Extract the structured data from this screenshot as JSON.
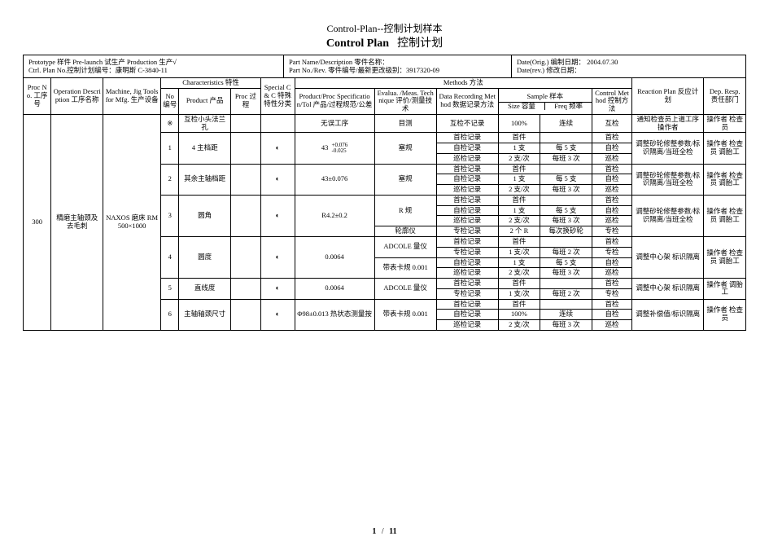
{
  "doc_title": "Control-Plan--控制计划样本",
  "doc_subtitle_bold": "Control  Plan",
  "doc_subtitle_cn": "控制计划",
  "header_box": {
    "c1_line1": "Prototype 样件          Pre-launch 试生产              Production 生产√",
    "c1_line2": "Ctrl. Plan No.控制计划编号：康明斯 C-3840-11",
    "c2_line1": "Part Name/Description 零件名称：",
    "c2_line2": "Part No./Rev. 零件编号/最新更改级别：3917320-09",
    "c3_line1": "Date(Orig.) 编制日期：  2004.07.30",
    "c3_line2": "Date(rev.)  修改日期："
  },
  "columns": {
    "proc_no": "Proc No. 工序号",
    "op_desc": "Operation Description 工序名称",
    "machine": "Machine, Jig Tools for Mfg. 生产设备",
    "characteristics": "Characteristics 特性",
    "no": "No 编号",
    "product": "Product 产品",
    "proc": "Proc 过程",
    "special": "Special C & C 特殊特性分类",
    "methods": "Methods 方法",
    "spec": "Product/Proc Specification/Tol 产品/过程规范/公差",
    "evalua": "Evalua. /Meas. Technique 评价/测量技术",
    "data_record": "Data Recording Method 数据记录方法",
    "sample": "Sample 样本",
    "size": "Size 容量",
    "freq": "Freq 频率",
    "control": "Control Method 控制方法",
    "reaction": "Reaction Plan 反应计划",
    "dep": "Dep. Resp. 责任部门"
  },
  "proc_no": "300",
  "op_desc": "精磨主轴颈及去毛刺",
  "machine": "NAXOS 磨床 RM500×1000",
  "rows": [
    {
      "no": "※",
      "product": "互检小头法兰孔",
      "proc": "",
      "special": "",
      "spec": "无误工序",
      "evalua": "目测",
      "data_record": "互检不记录",
      "size": "100%",
      "freq": "连续",
      "control": "互检",
      "reaction": "通知检查员上道工序操作者",
      "dep": "操作者 检查员"
    },
    {
      "no": "1",
      "product": "4 主档距",
      "proc": "",
      "special": "◐",
      "spec": "43",
      "spec_tol_top": "+0.076",
      "spec_tol_bot": "-0.025",
      "evalua": "塞规",
      "data_record": "首检记录",
      "size": "首件",
      "freq": "",
      "control": "首检",
      "reaction": "调整砂轮修整参数/标识隔离/当班全检",
      "dep": "操作者 检查员 调胎工",
      "span": 3
    },
    {
      "data_record": "自检记录",
      "size": "1 支",
      "freq": "每 5 支",
      "control": "自检"
    },
    {
      "data_record": "巡检记录",
      "size": "2 支/次",
      "freq": "每班 3 次",
      "control": "巡检"
    },
    {
      "no": "2",
      "product": "其余主轴档距",
      "proc": "",
      "special": "◐",
      "spec": "43±0.076",
      "evalua": "塞规",
      "data_record": "首检记录",
      "size": "首件",
      "freq": "",
      "control": "首检",
      "reaction": "调整砂轮修整参数/标识隔离/当班全检",
      "dep": "操作者 检查员 调胎工",
      "span": 3
    },
    {
      "data_record": "自检记录",
      "size": "1 支",
      "freq": "每 5 支",
      "control": "自检"
    },
    {
      "data_record": "巡检记录",
      "size": "2 支/次",
      "freq": "每班 3 次",
      "control": "巡检"
    },
    {
      "no": "3",
      "product": "圆角",
      "proc": "",
      "special": "◐",
      "spec": "R4.2±0.2",
      "evalua": "R 规",
      "data_record": "首检记录",
      "size": "首件",
      "freq": "",
      "control": "首检",
      "reaction": "调整砂轮修整参数/标识隔离/当班全检",
      "dep": "操作者 检查员 调胎工",
      "span": 4
    },
    {
      "data_record": "自检记录",
      "size": "1 支",
      "freq": "每 5 支",
      "control": "自检"
    },
    {
      "data_record": "巡检记录",
      "size": "2 支/次",
      "freq": "每班 3 次",
      "control": "巡检"
    },
    {
      "evalua": "轮廓仪",
      "data_record": "专检记录",
      "size": "2 个 R",
      "freq": "每次换砂轮",
      "control": "专检"
    },
    {
      "no": "4",
      "product": "圆度",
      "proc": "",
      "special": "◐",
      "spec": "0.0064",
      "evalua_span1": "ADCOLE 量仪",
      "data_record": "首检记录",
      "size": "首件",
      "freq": "",
      "control": "首检",
      "reaction": "调整中心架 标识隔离",
      "dep": "操作者 检查员 调胎工",
      "span": 4
    },
    {
      "data_record": "专检记录",
      "size": "1 支/次",
      "freq": "每班 2 次",
      "control": "专检"
    },
    {
      "evalua_span2": "带表卡规 0.001",
      "data_record": "自检记录",
      "size": "1 支",
      "freq": "每 5 支",
      "control": "自检"
    },
    {
      "data_record": "巡检记录",
      "size": "2 支/次",
      "freq": "每班 3 次",
      "control": "巡检"
    },
    {
      "no": "5",
      "product": "直线度",
      "proc": "",
      "special": "◐",
      "spec": "0.0064",
      "evalua": "ADCOLE 量仪",
      "data_record": "首检记录",
      "size": "首件",
      "freq": "",
      "control": "首检",
      "reaction": "调整中心架 标识隔离",
      "dep": "操作者 调胎工",
      "span": 2
    },
    {
      "data_record": "专检记录",
      "size": "1 支/次",
      "freq": "每班 2 次",
      "control": "专检"
    },
    {
      "no": "6",
      "product": "主轴轴颈尺寸",
      "proc": "",
      "special": "◐",
      "spec": "Φ98±0.013 热状态测量按",
      "evalua": "带表卡规 0.001",
      "data_record": "首检记录",
      "size": "首件",
      "freq": "",
      "control": "首检",
      "reaction": "调整补偿值/标识隔离",
      "dep": "操作者 检查员",
      "span": 3
    },
    {
      "data_record": "自检记录",
      "size": "100%",
      "freq": "连续",
      "control": "自检"
    },
    {
      "data_record": "巡检记录",
      "size": "2 支/次",
      "freq": "每班 3 次",
      "control": "巡检"
    }
  ],
  "footer": {
    "page": "1",
    "sep": "/",
    "total": "11"
  },
  "colwidths": {
    "proc_no": 28,
    "op_desc": 52,
    "machine": 58,
    "no": 18,
    "product": 52,
    "proc": 30,
    "special": 34,
    "spec": 80,
    "evalua": 62,
    "data_record": 62,
    "size": 42,
    "freq": 52,
    "control": 40,
    "reaction": 72,
    "dep": 42
  }
}
